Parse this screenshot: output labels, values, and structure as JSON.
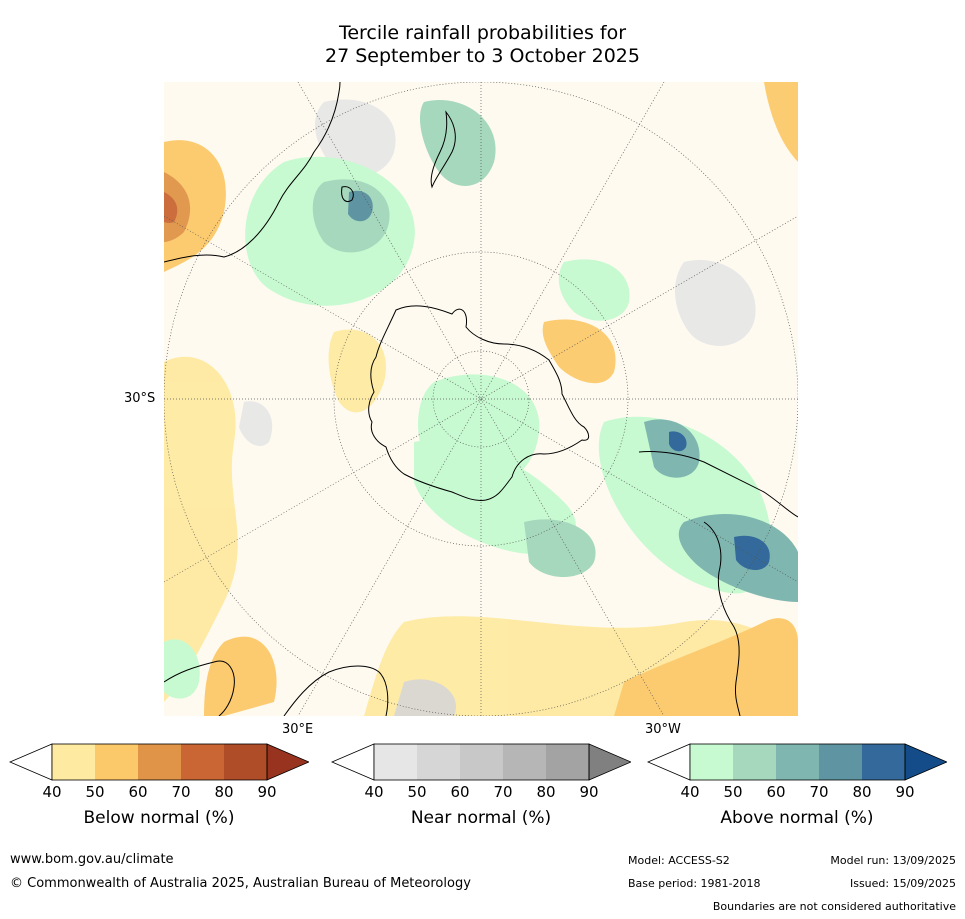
{
  "title": {
    "line1": "Tercile rainfall probabilities for",
    "line2": "27 September to 3 October 2025"
  },
  "map": {
    "projection": "south-polar-stereographic",
    "lat_label": "30°S",
    "lon_labels": [
      "30°E",
      "30°W"
    ],
    "colors": {
      "coast": "#000000",
      "grid": "#555555",
      "land": "#ffffff"
    }
  },
  "colorbars": [
    {
      "title": "Below normal (%)",
      "ticks": [
        "40",
        "50",
        "60",
        "70",
        "80",
        "90"
      ],
      "colors": [
        "#ffffff",
        "#feeaa0",
        "#fcc96a",
        "#e09447",
        "#c96634",
        "#b04d29",
        "#97331f"
      ]
    },
    {
      "title": "Near normal (%)",
      "ticks": [
        "40",
        "50",
        "60",
        "70",
        "80",
        "90"
      ],
      "colors": [
        "#ffffff",
        "#e6e6e6",
        "#d6d6d6",
        "#c8c8c8",
        "#b6b6b6",
        "#a3a3a3",
        "#808080"
      ]
    },
    {
      "title": "Above normal (%)",
      "ticks": [
        "40",
        "50",
        "60",
        "70",
        "80",
        "90"
      ],
      "colors": [
        "#ffffff",
        "#c7fad0",
        "#a6d8bd",
        "#7fb7b0",
        "#5f95a2",
        "#336a9b",
        "#134c88"
      ]
    }
  ],
  "footer": {
    "url": "www.bom.gov.au/climate",
    "copyright": "© Commonwealth of Australia 2025, Australian Bureau of Meteorology",
    "model": "Model: ACCESS-S2",
    "base_period": "Base period: 1981-2018",
    "model_run": "Model run: 13/09/2025",
    "issued": "Issued: 15/09/2025",
    "disclaimer": "Boundaries are not considered authoritative"
  }
}
